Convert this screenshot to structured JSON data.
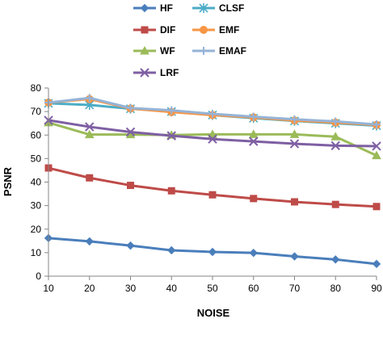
{
  "chart_data": {
    "type": "line",
    "title": "",
    "xlabel": "NOISE",
    "ylabel": "PSNR",
    "x": [
      10,
      20,
      30,
      40,
      50,
      60,
      70,
      80,
      90
    ],
    "xlim": [
      10,
      90
    ],
    "ylim": [
      0,
      80
    ],
    "yticks": [
      0,
      10,
      20,
      30,
      40,
      50,
      60,
      70,
      80
    ],
    "grid": false,
    "legend_position": "top",
    "series": [
      {
        "name": "HF",
        "color": "#4A7EBB",
        "marker": "diamond",
        "values": [
          16.2,
          14.8,
          13.0,
          11.0,
          10.3,
          9.9,
          8.4,
          7.1,
          5.2
        ]
      },
      {
        "name": "CLSF",
        "color": "#4BACC6",
        "marker": "asterisk",
        "values": [
          73.5,
          72.8,
          71.2,
          70.0,
          68.5,
          67.2,
          66.0,
          65.0,
          64.0
        ]
      },
      {
        "name": "DIF",
        "color": "#BE4B48",
        "marker": "square",
        "values": [
          46.0,
          41.8,
          38.6,
          36.3,
          34.6,
          33.0,
          31.6,
          30.5,
          29.6
        ]
      },
      {
        "name": "EMF",
        "color": "#F79646",
        "marker": "circle",
        "values": [
          73.8,
          75.3,
          71.3,
          69.8,
          68.5,
          67.5,
          66.2,
          65.3,
          64.3
        ]
      },
      {
        "name": "WF",
        "color": "#9BBB59",
        "marker": "triangle",
        "values": [
          65.3,
          60.2,
          60.2,
          60.0,
          60.3,
          60.3,
          60.3,
          59.3,
          51.3
        ]
      },
      {
        "name": "EMAF",
        "color": "#95B3D7",
        "marker": "plus",
        "values": [
          73.8,
          75.8,
          71.5,
          70.5,
          69.0,
          67.8,
          66.7,
          65.8,
          64.5
        ]
      },
      {
        "name": "LRF",
        "color": "#7E5FA3",
        "marker": "x",
        "values": [
          66.3,
          63.5,
          61.3,
          59.7,
          58.3,
          57.3,
          56.3,
          55.5,
          55.3
        ]
      }
    ]
  }
}
